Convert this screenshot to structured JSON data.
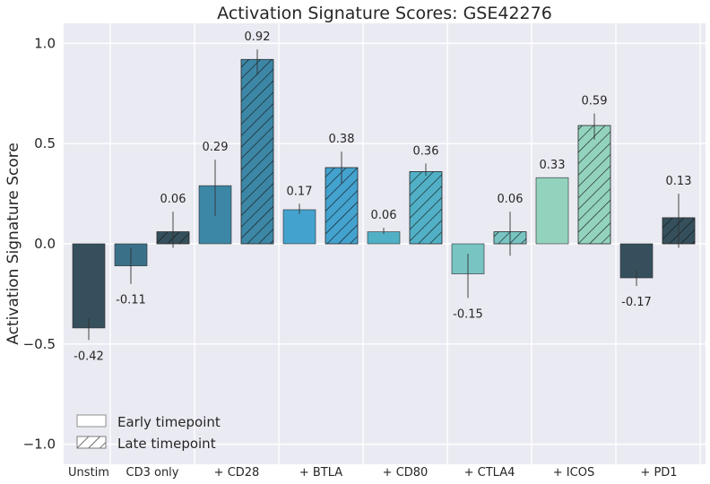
{
  "chart_data": {
    "type": "bar",
    "title": "Activation Signature Scores: GSE42276",
    "ylabel": "Activation Signature Score",
    "xlabel": "",
    "ylim": [
      -1.1,
      1.1
    ],
    "yticks": [
      1.0,
      0.5,
      0.0,
      -0.5,
      -1.0
    ],
    "ytick_labels": [
      "1.0",
      "0.5",
      "0.0",
      "−0.5",
      "−1.0"
    ],
    "grid": true,
    "legend_position": "bottom-left",
    "legend": [
      {
        "label": "Early timepoint",
        "hatch": false
      },
      {
        "label": "Late timepoint",
        "hatch": true
      }
    ],
    "groups": [
      "Unstim",
      "CD3 only",
      "+ CD28",
      "+ BTLA",
      "+ CD80",
      "+ CTLA4",
      "+ ICOS",
      "+ PD1"
    ],
    "bars": [
      {
        "group": "Unstim",
        "timepoint": "Early",
        "value": -0.42,
        "err_low": -0.48,
        "err_high": -0.37,
        "label": "-0.42",
        "color": "#35505c"
      },
      {
        "group": "CD3 only",
        "timepoint": "Early",
        "value": -0.11,
        "err_low": -0.2,
        "err_high": -0.02,
        "label": "-0.11",
        "color": "#3a7189"
      },
      {
        "group": "CD3 only",
        "timepoint": "Late",
        "value": 0.06,
        "err_low": -0.02,
        "err_high": 0.16,
        "label": "0.06",
        "color": "#35505c"
      },
      {
        "group": "+ CD28",
        "timepoint": "Early",
        "value": 0.29,
        "err_low": 0.14,
        "err_high": 0.42,
        "label": "0.29",
        "color": "#3d87a6"
      },
      {
        "group": "+ CD28",
        "timepoint": "Late",
        "value": 0.92,
        "err_low": 0.84,
        "err_high": 0.97,
        "label": "0.92",
        "color": "#3d87a6"
      },
      {
        "group": "+ BTLA",
        "timepoint": "Early",
        "value": 0.17,
        "err_low": 0.15,
        "err_high": 0.2,
        "label": "0.17",
        "color": "#44a2ce"
      },
      {
        "group": "+ BTLA",
        "timepoint": "Late",
        "value": 0.38,
        "err_low": 0.3,
        "err_high": 0.46,
        "label": "0.38",
        "color": "#44a2ce"
      },
      {
        "group": "+ CD80",
        "timepoint": "Early",
        "value": 0.06,
        "err_low": 0.05,
        "err_high": 0.08,
        "label": "0.06",
        "color": "#51b0c6"
      },
      {
        "group": "+ CD80",
        "timepoint": "Late",
        "value": 0.36,
        "err_low": 0.34,
        "err_high": 0.4,
        "label": "0.36",
        "color": "#51b0c6"
      },
      {
        "group": "+ CTLA4",
        "timepoint": "Early",
        "value": -0.15,
        "err_low": -0.27,
        "err_high": -0.05,
        "label": "-0.15",
        "color": "#78c4c2"
      },
      {
        "group": "+ CTLA4",
        "timepoint": "Late",
        "value": 0.06,
        "err_low": -0.06,
        "err_high": 0.16,
        "label": "0.06",
        "color": "#78c4c2"
      },
      {
        "group": "+ ICOS",
        "timepoint": "Early",
        "value": 0.33,
        "err_low": 0.33,
        "err_high": 0.33,
        "label": "0.33",
        "color": "#93d3be"
      },
      {
        "group": "+ ICOS",
        "timepoint": "Late",
        "value": 0.59,
        "err_low": 0.52,
        "err_high": 0.65,
        "label": "0.59",
        "color": "#93d3be"
      },
      {
        "group": "+ PD1",
        "timepoint": "Early",
        "value": -0.17,
        "err_low": -0.21,
        "err_high": -0.13,
        "label": "-0.17",
        "color": "#35505c"
      },
      {
        "group": "+ PD1",
        "timepoint": "Late",
        "value": 0.13,
        "err_low": -0.02,
        "err_high": 0.25,
        "label": "0.13",
        "color": "#35505c"
      }
    ]
  }
}
